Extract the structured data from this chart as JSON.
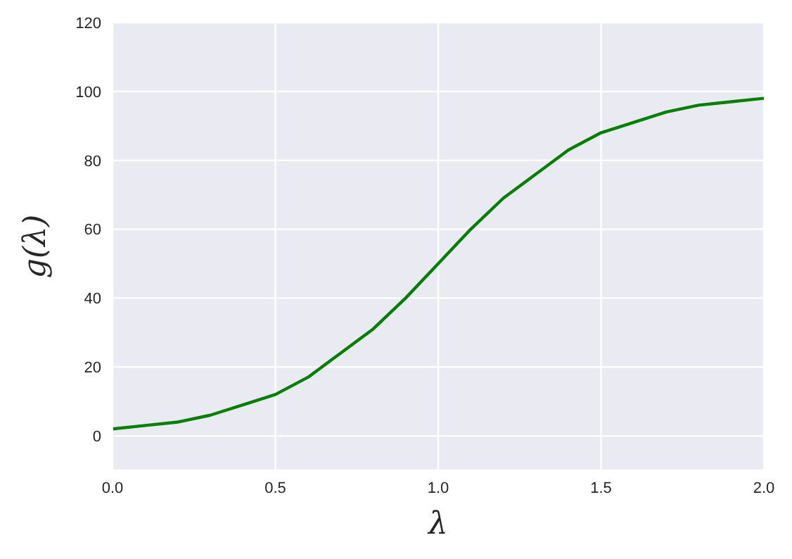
{
  "chart_data": {
    "type": "line",
    "xlabel": "λ",
    "ylabel": "g(λ)",
    "x": [
      0,
      0.1,
      0.2,
      0.3,
      0.4,
      0.5,
      0.6,
      0.7,
      0.8,
      0.9,
      1.0,
      1.1,
      1.2,
      1.3,
      1.4,
      1.5,
      1.6,
      1.7,
      1.8,
      1.9,
      2.0
    ],
    "series": [
      {
        "color": "#008000",
        "values": [
          2,
          3,
          4,
          6,
          9,
          12,
          17,
          24,
          31,
          40,
          50,
          60,
          69,
          76,
          83,
          88,
          91,
          94,
          96,
          97,
          98
        ]
      }
    ],
    "xlim": [
      0,
      2
    ],
    "xticks": [
      {
        "value": 0,
        "label": "0.0"
      },
      {
        "value": 0.5,
        "label": "0.5"
      },
      {
        "value": 1,
        "label": "1.0"
      },
      {
        "value": 1.5,
        "label": "1.5"
      },
      {
        "value": 2,
        "label": "2.0"
      }
    ],
    "ylim": [
      -10,
      120
    ],
    "yticks": [
      0,
      20,
      40,
      60,
      80,
      100,
      120
    ],
    "grid": true,
    "marker": "none",
    "line_style": "solid"
  }
}
